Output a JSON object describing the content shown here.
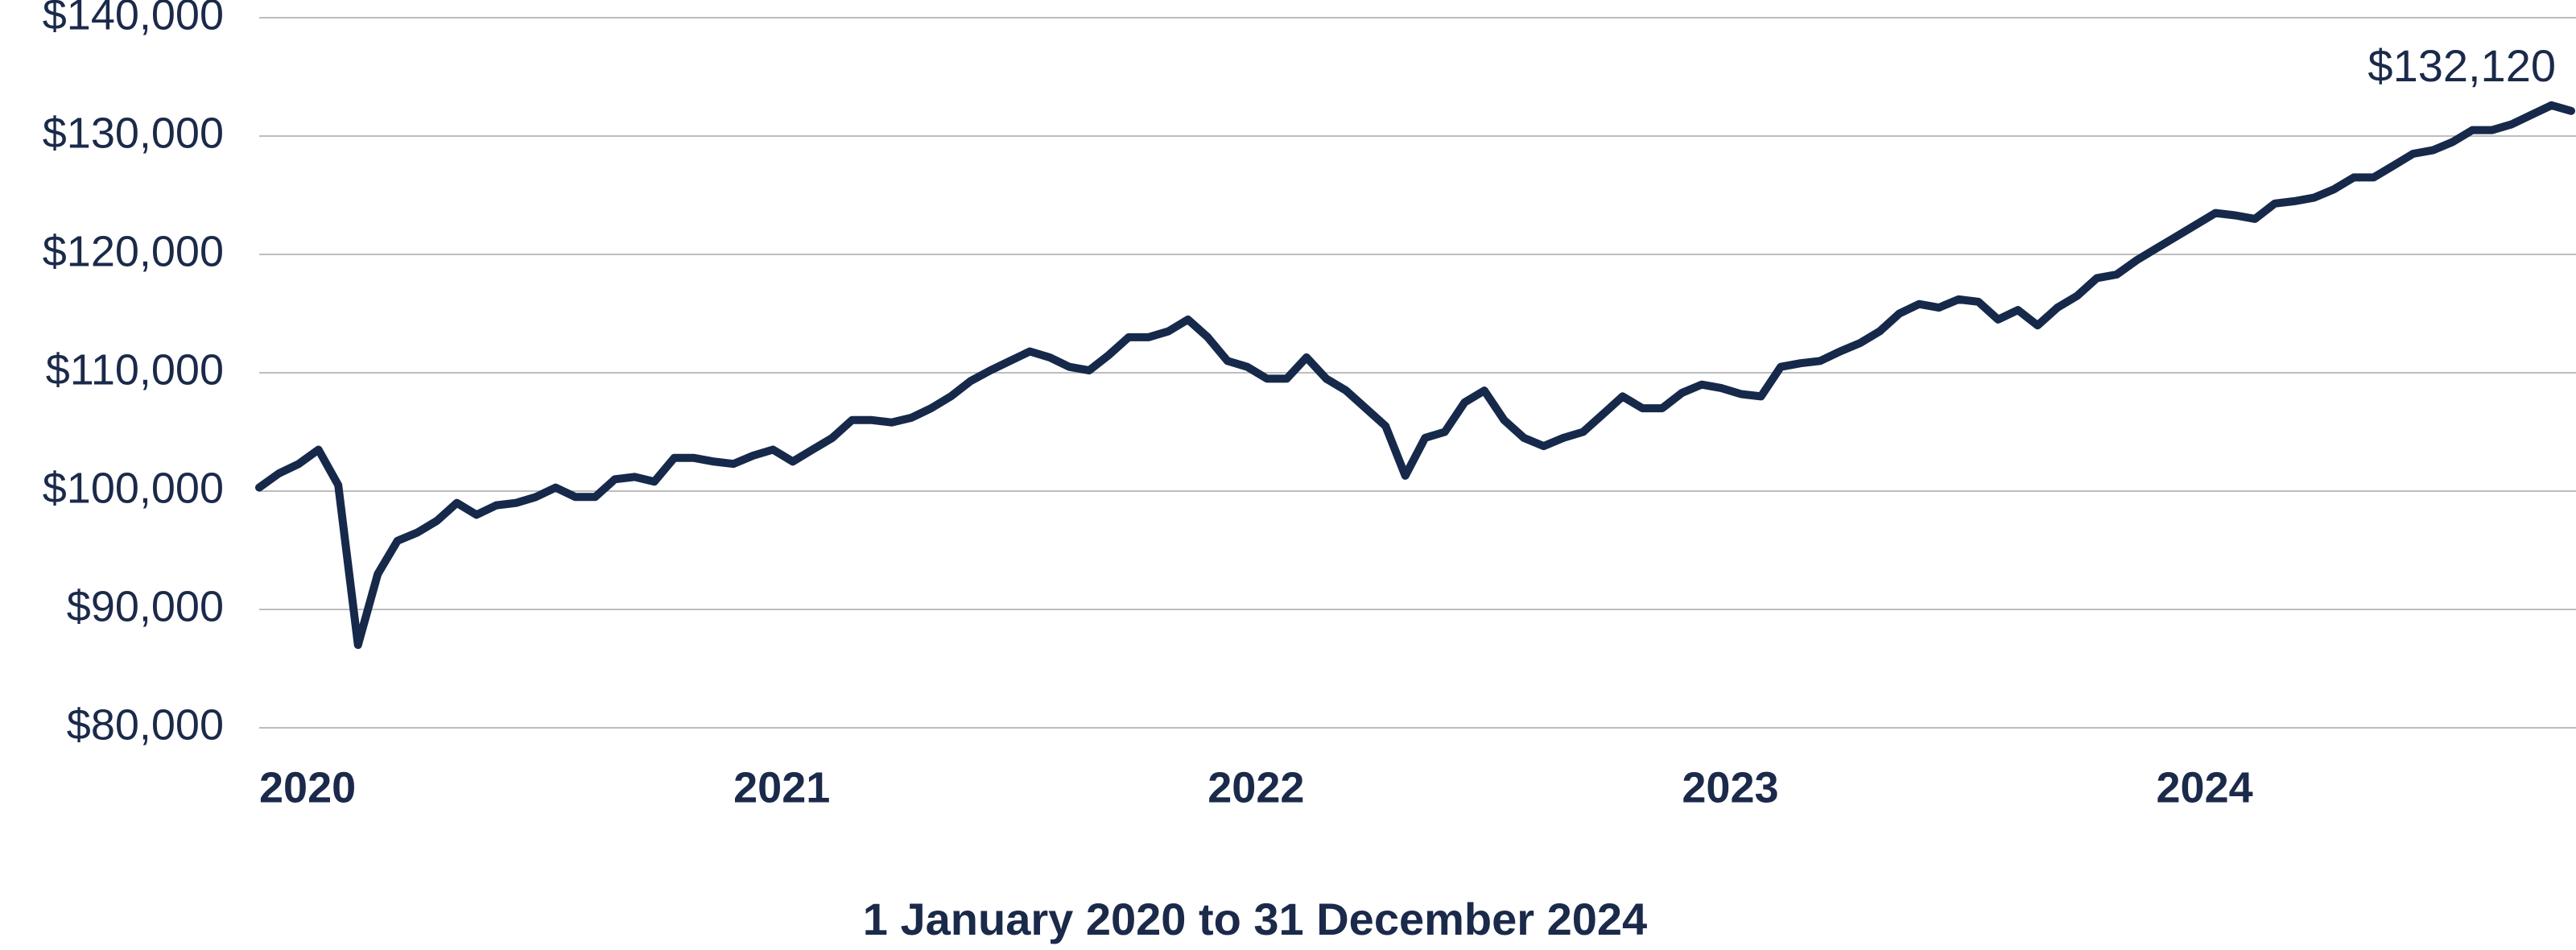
{
  "chart_data": {
    "type": "line",
    "x_title": "1 January 2020 to 31 December 2024",
    "annotation": "$132,120",
    "categories": [
      "2020",
      null,
      null,
      null,
      null,
      null,
      null,
      null,
      null,
      null,
      null,
      null,
      null,
      null,
      null,
      null,
      null,
      null,
      null,
      null,
      null,
      null,
      null,
      null,
      "2021",
      null,
      null,
      null,
      null,
      null,
      null,
      null,
      null,
      null,
      null,
      null,
      null,
      null,
      null,
      null,
      null,
      null,
      null,
      null,
      null,
      null,
      null,
      null,
      "2022",
      null,
      null,
      null,
      null,
      null,
      null,
      null,
      null,
      null,
      null,
      null,
      null,
      null,
      null,
      null,
      null,
      null,
      null,
      null,
      null,
      null,
      null,
      null,
      "2023",
      null,
      null,
      null,
      null,
      null,
      null,
      null,
      null,
      null,
      null,
      null,
      null,
      null,
      null,
      null,
      null,
      null,
      null,
      null,
      null,
      null,
      null,
      null,
      "2024",
      null,
      null,
      null,
      null,
      null,
      null,
      null,
      null,
      null,
      null,
      null,
      null,
      null,
      null,
      null,
      null,
      null,
      null,
      null,
      null,
      null
    ],
    "values": [
      100300,
      101500,
      102300,
      103500,
      100500,
      87000,
      93000,
      95800,
      96500,
      97500,
      99000,
      98000,
      98800,
      99000,
      99500,
      100300,
      99500,
      99500,
      101000,
      101200,
      100800,
      102800,
      102800,
      102500,
      102300,
      103000,
      103500,
      102500,
      103500,
      104500,
      106000,
      106000,
      105800,
      106200,
      107000,
      108000,
      109300,
      110200,
      111000,
      111800,
      111300,
      110500,
      110200,
      111500,
      113000,
      113000,
      113500,
      114500,
      113000,
      111000,
      110500,
      109500,
      109500,
      111300,
      109500,
      108500,
      107000,
      105500,
      101300,
      104500,
      105000,
      107500,
      108500,
      106000,
      104500,
      103800,
      104500,
      105000,
      106500,
      108000,
      107000,
      107000,
      108300,
      109000,
      108700,
      108200,
      108000,
      110500,
      110800,
      111000,
      111800,
      112500,
      113500,
      115000,
      115800,
      115500,
      116200,
      116000,
      114500,
      115300,
      114000,
      115500,
      116500,
      118000,
      118300,
      119500,
      120500,
      121500,
      122500,
      123500,
      123300,
      123000,
      124300,
      124500,
      124800,
      125500,
      126500,
      126500,
      127500,
      128500,
      128800,
      129500,
      130500,
      130500,
      131000,
      131800,
      132600,
      132120
    ],
    "color": "#16294a",
    "ylim": [
      80000,
      140000
    ],
    "yticks": [
      {
        "value": 80000,
        "label": "$80,000"
      },
      {
        "value": 90000,
        "label": "$90,000"
      },
      {
        "value": 100000,
        "label": "$100,000"
      },
      {
        "value": 110000,
        "label": "$110,000"
      },
      {
        "value": 120000,
        "label": "$120,000"
      },
      {
        "value": 130000,
        "label": "$130,000"
      },
      {
        "value": 140000,
        "label": "$140,000"
      }
    ],
    "grid": true
  }
}
